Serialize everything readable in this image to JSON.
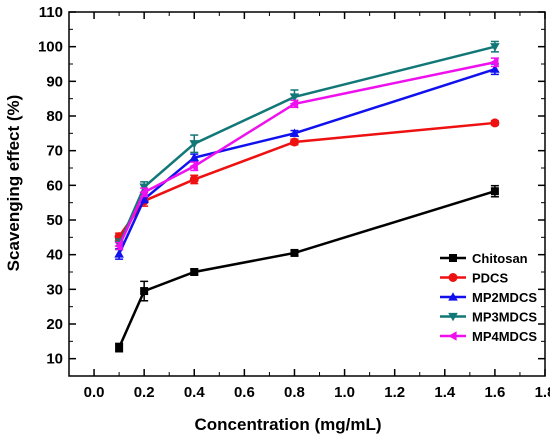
{
  "chart_data": {
    "type": "line",
    "xlabel": "Concentration (mg/mL)",
    "ylabel": "Scavenging effect (%)",
    "xlim": [
      -0.1,
      1.8
    ],
    "ylim": [
      5,
      110
    ],
    "xticks": [
      "0.0",
      "0.2",
      "0.4",
      "0.6",
      "0.8",
      "1.0",
      "1.2",
      "1.4",
      "1.6",
      "1.8"
    ],
    "yticks": [
      "10",
      "20",
      "30",
      "40",
      "50",
      "60",
      "70",
      "80",
      "90",
      "100",
      "110"
    ],
    "x": [
      0.1,
      0.2,
      0.4,
      0.8,
      1.6
    ],
    "grid": false,
    "legend_position": "bottom-right",
    "series": [
      {
        "name": "Chitosan",
        "color": "#000000",
        "marker": "square",
        "values": [
          13.2,
          29.5,
          35.0,
          40.5,
          58.3
        ],
        "errors": [
          1.2,
          2.8,
          0.8,
          0.8,
          1.6
        ]
      },
      {
        "name": "PDCS",
        "color": "#ee1111",
        "marker": "circle",
        "values": [
          45.2,
          55.5,
          61.7,
          72.5,
          78.0
        ],
        "errors": [
          1.0,
          1.5,
          1.2,
          0.8,
          0.6
        ]
      },
      {
        "name": "MP2MDCS",
        "color": "#1111ee",
        "marker": "triangle-up",
        "values": [
          40.2,
          56.0,
          68.0,
          75.0,
          93.5
        ],
        "errors": [
          1.5,
          1.0,
          1.0,
          0.8,
          1.5
        ]
      },
      {
        "name": "MP3MDCS",
        "color": "#117777",
        "marker": "triangle-down",
        "values": [
          43.0,
          59.5,
          72.0,
          85.5,
          100.0
        ],
        "errors": [
          1.5,
          1.5,
          2.5,
          2.0,
          1.5
        ]
      },
      {
        "name": "MP4MDCS",
        "color": "#ee11ee",
        "marker": "triangle-left",
        "values": [
          42.5,
          58.0,
          65.5,
          83.5,
          95.5
        ],
        "errors": [
          1.0,
          1.2,
          1.2,
          1.0,
          1.2
        ]
      }
    ]
  }
}
